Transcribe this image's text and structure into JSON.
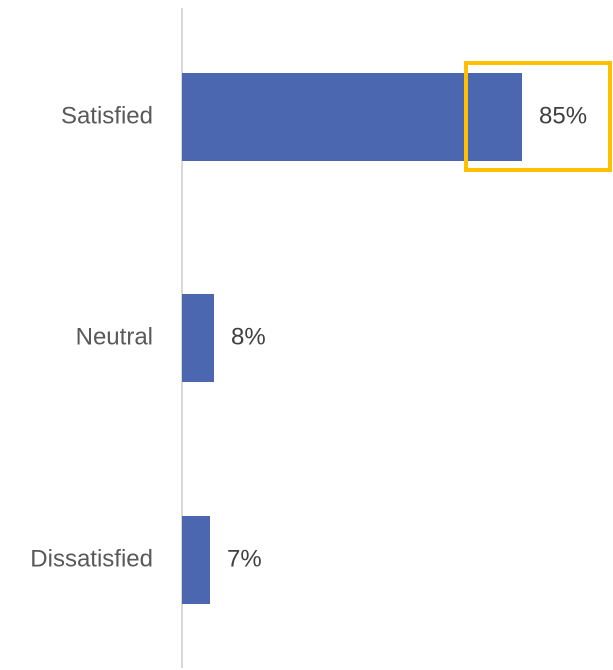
{
  "chart_data": {
    "type": "bar",
    "orientation": "horizontal",
    "categories": [
      "Satisfied",
      "Neutral",
      "Dissatisfied"
    ],
    "values": [
      85,
      8,
      7
    ],
    "data_labels": [
      "85%",
      "8%",
      "7%"
    ],
    "xlim": [
      0,
      100
    ],
    "grid": false,
    "legend": "none",
    "highlight": {
      "category": "Satisfied",
      "color": "#ffc000"
    },
    "colors": {
      "bar": "#4a67b0",
      "axis": "#d9d9d9"
    }
  }
}
